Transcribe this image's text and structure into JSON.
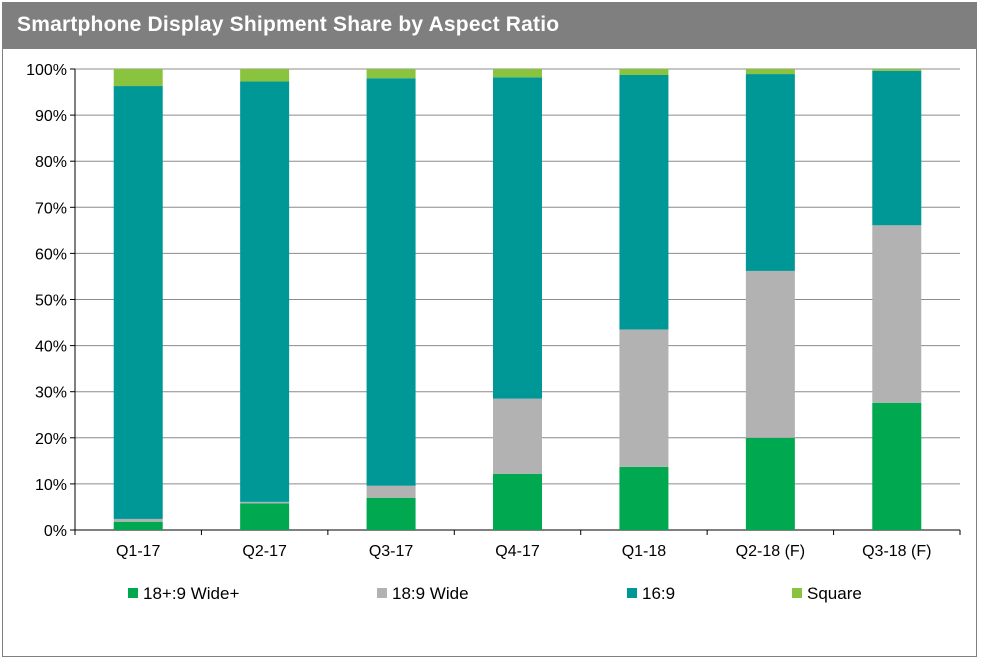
{
  "chart_data": {
    "type": "bar",
    "stacked": true,
    "title": "Smartphone Display Shipment Share by Aspect Ratio",
    "categories": [
      "Q1-17",
      "Q2-17",
      "Q3-17",
      "Q4-17",
      "Q1-18",
      "Q2-18 (F)",
      "Q3-18 (F)"
    ],
    "series": [
      {
        "name": "18+:9 Wide+",
        "color": "#00a84f",
        "values": [
          1.8,
          5.8,
          7.0,
          12.2,
          13.7,
          20.0,
          27.6
        ]
      },
      {
        "name": "18:9 Wide",
        "color": "#b2b2b2",
        "values": [
          0.6,
          0.3,
          2.6,
          16.3,
          29.8,
          36.2,
          38.5
        ]
      },
      {
        "name": "16:9",
        "color": "#009797",
        "values": [
          93.9,
          91.2,
          88.4,
          69.7,
          55.2,
          42.7,
          33.5
        ]
      },
      {
        "name": "Square",
        "color": "#8ac43f",
        "values": [
          3.7,
          2.7,
          2.0,
          1.8,
          1.3,
          1.1,
          0.4
        ]
      }
    ],
    "ylim": [
      0,
      100
    ],
    "yticks": [
      "0%",
      "10%",
      "20%",
      "30%",
      "40%",
      "50%",
      "60%",
      "70%",
      "80%",
      "90%",
      "100%"
    ],
    "grid": true,
    "legend_position": "bottom"
  }
}
